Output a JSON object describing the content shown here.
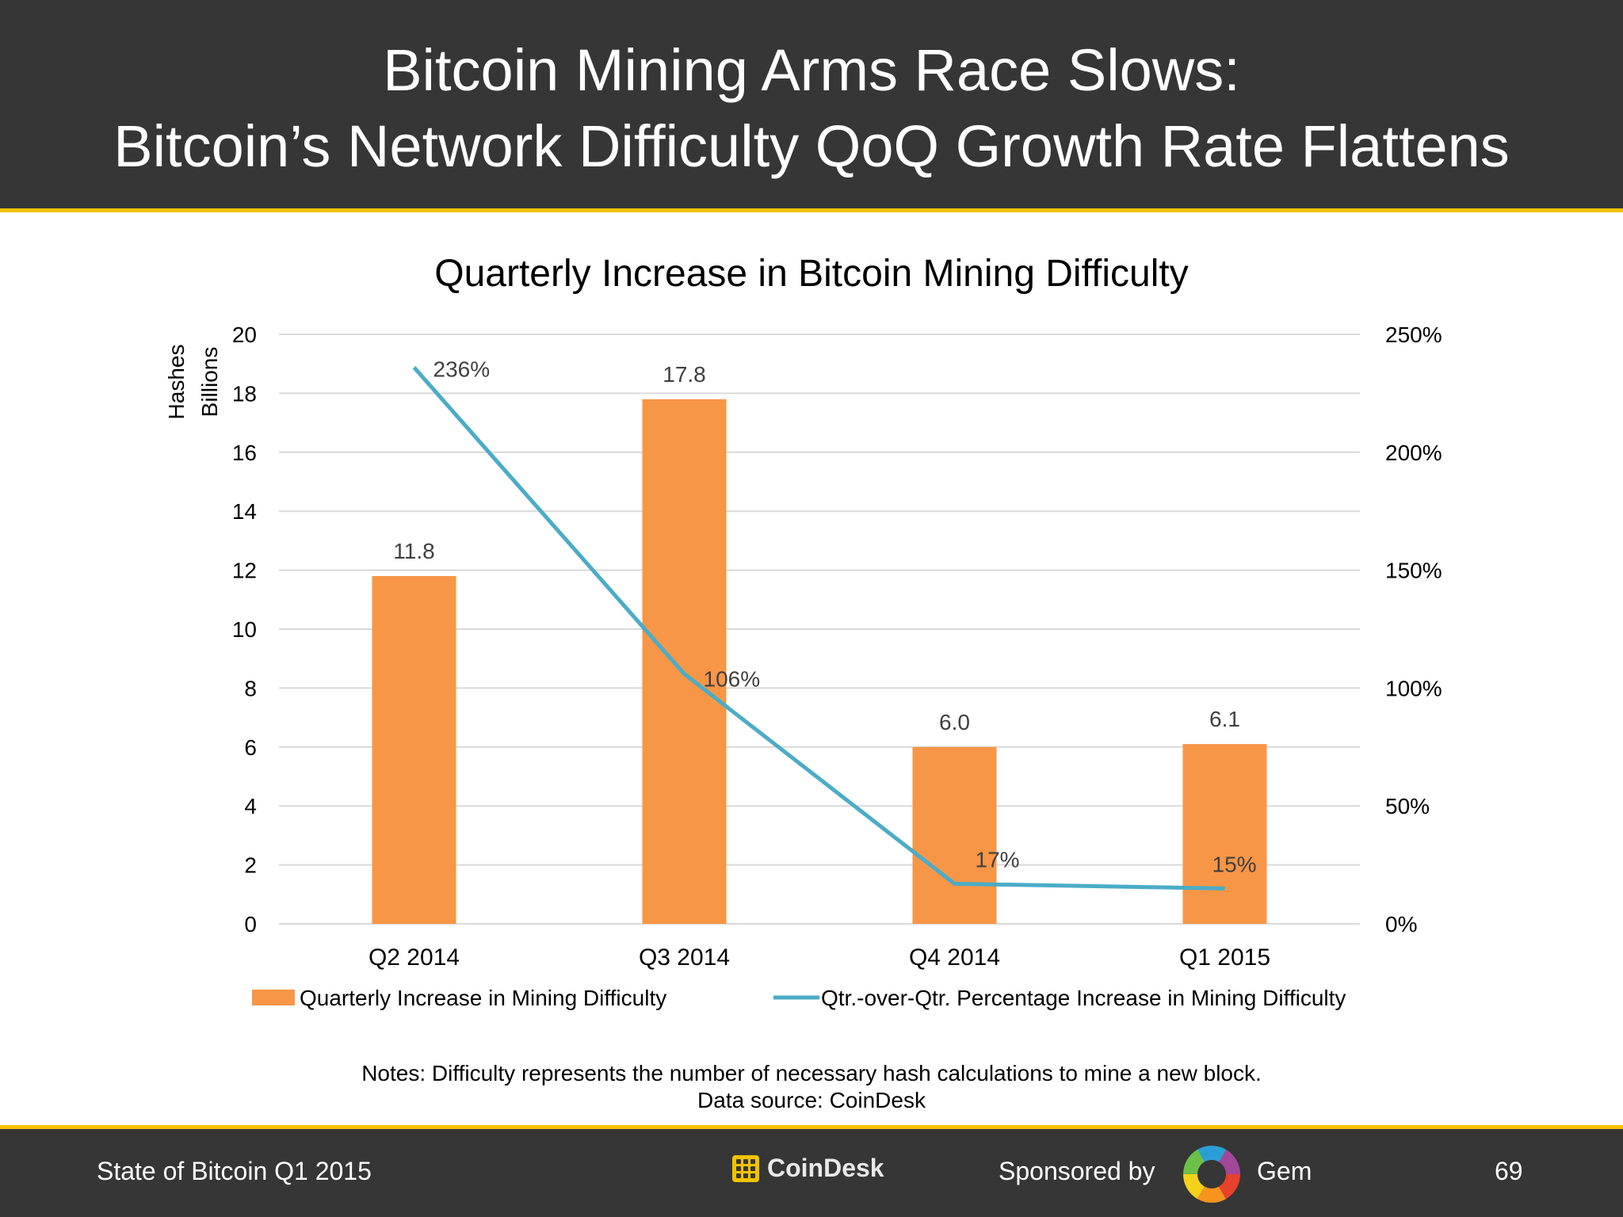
{
  "header": {
    "title_line1": "Bitcoin Mining Arms Race Slows:",
    "title_line2": "Bitcoin’s Network Difficulty QoQ Growth Rate Flattens"
  },
  "chart_data": {
    "type": "bar",
    "title": "Quarterly Increase in Bitcoin Mining Difficulty",
    "categories": [
      "Q2 2014",
      "Q3 2014",
      "Q4 2014",
      "Q1 2015"
    ],
    "ylabel_lines": [
      "Hashes",
      "Billions"
    ],
    "ylim": [
      0,
      20
    ],
    "yticks": [
      0,
      2,
      4,
      6,
      8,
      10,
      12,
      14,
      16,
      18,
      20
    ],
    "y2lim": [
      0,
      250
    ],
    "y2ticks": [
      "0%",
      "50%",
      "100%",
      "150%",
      "200%",
      "250%"
    ],
    "y2tick_values": [
      0,
      50,
      100,
      150,
      200,
      250
    ],
    "grid": true,
    "legend_position": "bottom",
    "series": [
      {
        "name": "Quarterly Increase in Mining Difficulty",
        "type": "bar",
        "axis": "left",
        "color": "#f79646",
        "values": [
          11.8,
          17.8,
          6.0,
          6.1
        ],
        "labels": [
          "11.8",
          "17.8",
          "6.0",
          "6.1"
        ]
      },
      {
        "name": "Qtr.-over-Qtr. Percentage Increase in Mining Difficulty",
        "type": "line",
        "axis": "right",
        "color": "#4bacc6",
        "values": [
          236,
          106,
          17,
          15
        ],
        "labels": [
          "236%",
          "106%",
          "17%",
          "15%"
        ]
      }
    ]
  },
  "notes": {
    "line1": "Notes: Difficulty represents the number of necessary hash calculations to mine a new block.",
    "line2": "Data source: CoinDesk"
  },
  "footer": {
    "left_text": "State of Bitcoin Q1 2015",
    "logo_text": "CoinDesk",
    "sponsor_text": "Sponsored by",
    "sponsor_name": "Gem",
    "page_number": "69"
  }
}
